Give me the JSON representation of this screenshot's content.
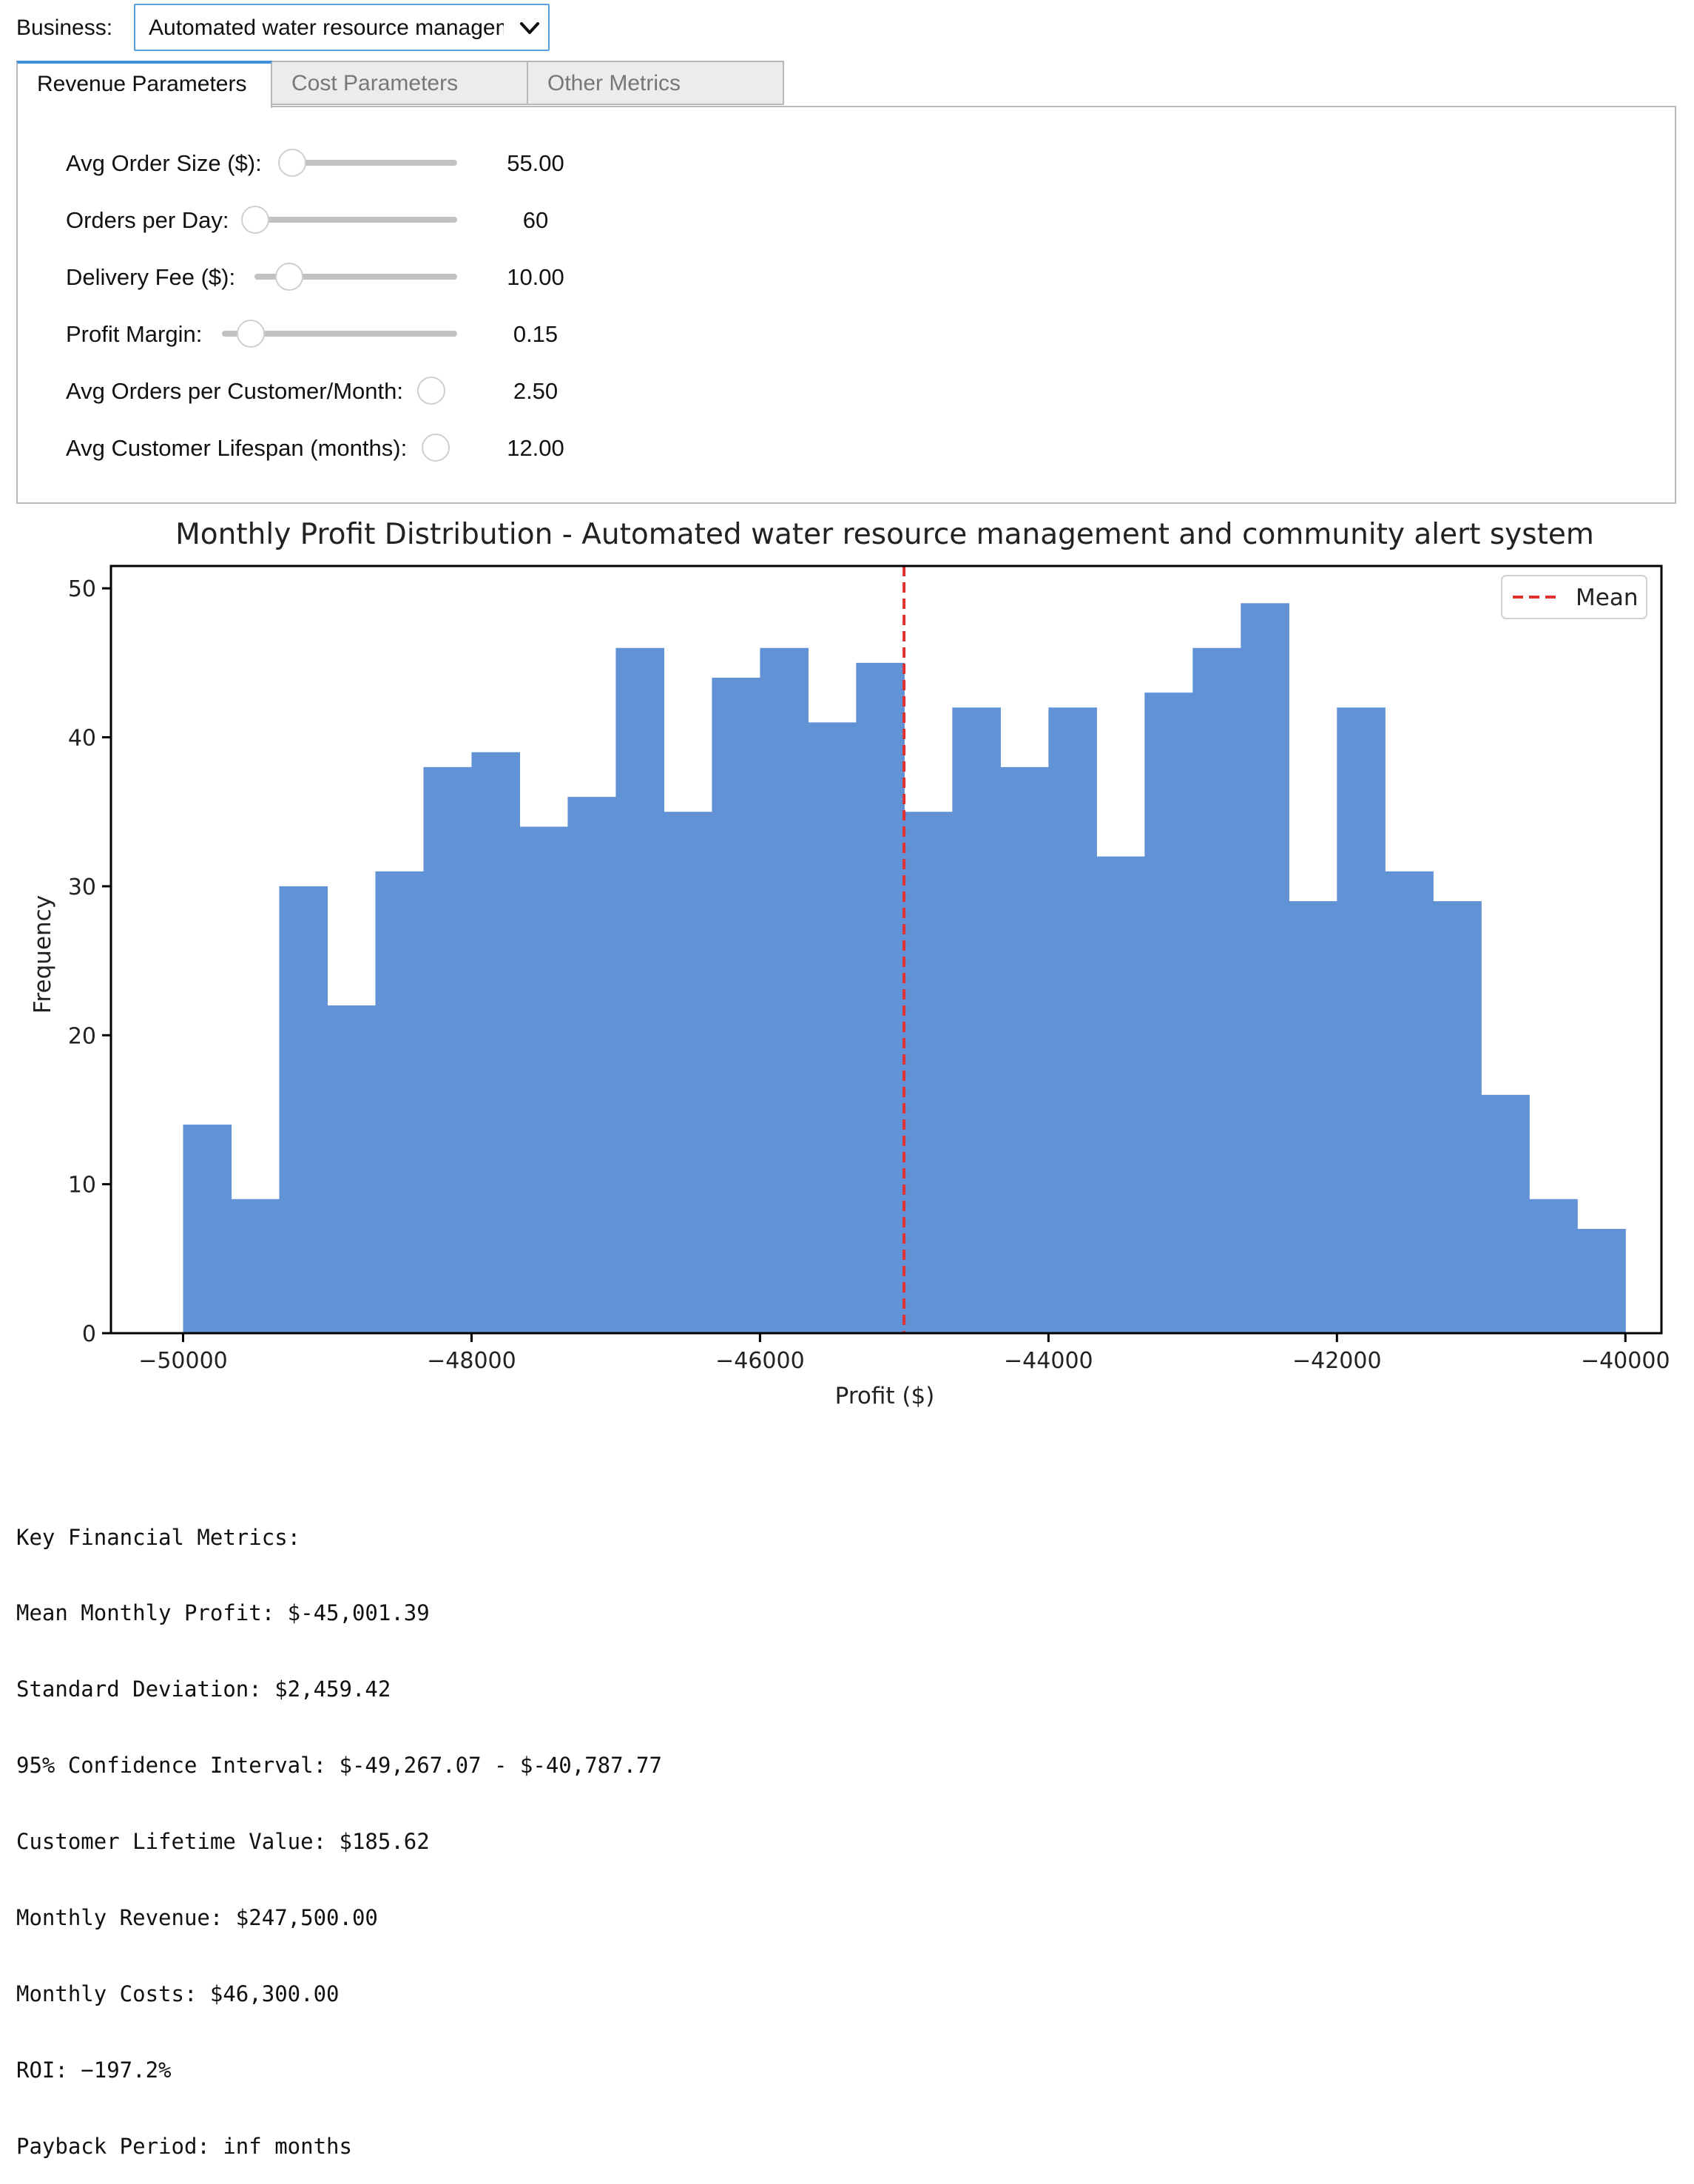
{
  "business": {
    "label": "Business:",
    "selected": "Automated water resource management and community alert system"
  },
  "tabs": [
    {
      "label": "Revenue Parameters",
      "active": true
    },
    {
      "label": "Cost Parameters",
      "active": false
    },
    {
      "label": "Other Metrics",
      "active": false
    }
  ],
  "revenue_params": [
    {
      "label": "Avg Order Size ($):",
      "value": "55.00",
      "level": 0.05
    },
    {
      "label": "Orders per Day:",
      "value": "60",
      "level": 0.0
    },
    {
      "label": "Delivery Fee ($):",
      "value": "10.00",
      "level": 0.2
    },
    {
      "label": "Profit Margin:",
      "value": "0.15",
      "level": 0.15
    },
    {
      "label": "Avg Orders per Customer/Month:",
      "value": "2.50",
      "level": 0.0
    },
    {
      "label": "Avg Customer Lifespan (months):",
      "value": "12.00",
      "level": 0.0
    }
  ],
  "chart_data": {
    "type": "bar",
    "title": "Monthly Profit Distribution - Automated water resource management and community alert system",
    "xlabel": "Profit ($)",
    "ylabel": "Frequency",
    "xlim": [
      -50500,
      -39750
    ],
    "ylim": [
      0,
      51.5
    ],
    "xticks": [
      -50000,
      -48000,
      -46000,
      -44000,
      -42000,
      -40000
    ],
    "xtick_labels": [
      "−50000",
      "−48000",
      "−46000",
      "−44000",
      "−42000",
      "−40000"
    ],
    "yticks": [
      0,
      10,
      20,
      30,
      40,
      50
    ],
    "bin_start": -50000,
    "bin_width": 333.33,
    "values": [
      14,
      9,
      30,
      22,
      31,
      38,
      39,
      34,
      36,
      46,
      35,
      44,
      46,
      41,
      45,
      35,
      42,
      38,
      42,
      32,
      43,
      46,
      49,
      29,
      42,
      31,
      29,
      16,
      9,
      7
    ],
    "bar_color": "#6192d5",
    "mean": -45001.39,
    "mean_color": "#e03030",
    "legend": {
      "label": "Mean",
      "placement": "top-right"
    },
    "grid": false
  },
  "metrics": {
    "lines": [
      "Key Financial Metrics:",
      "Mean Monthly Profit: $-45,001.39",
      "Standard Deviation: $2,459.42",
      "95% Confidence Interval: $-49,267.07 - $-40,787.77",
      "Customer Lifetime Value: $185.62",
      "Monthly Revenue: $247,500.00",
      "Monthly Costs: $46,300.00",
      "ROI: −197.2%",
      "Payback Period: inf months"
    ]
  }
}
